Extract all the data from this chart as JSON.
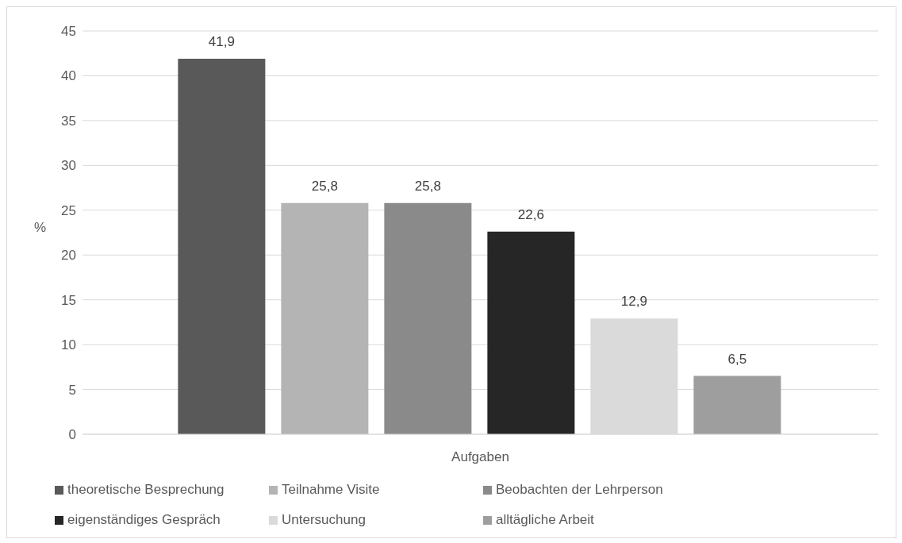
{
  "chart_data": {
    "type": "bar",
    "ylabel": "%",
    "categories": [
      "Aufgaben"
    ],
    "ylim": [
      0,
      45
    ],
    "yticks": [
      0,
      5,
      10,
      15,
      20,
      25,
      30,
      35,
      40,
      45
    ],
    "grid": "y",
    "legend": "bottom",
    "series": [
      {
        "name": "theoretische Besprechung",
        "color": "#595959",
        "values": [
          41.9
        ],
        "value_labels": [
          "41,9"
        ]
      },
      {
        "name": "Teilnahme Visite",
        "color": "#b4b4b4",
        "values": [
          25.8
        ],
        "value_labels": [
          "25,8"
        ]
      },
      {
        "name": "Beobachten der Lehrperson",
        "color": "#8a8a8a",
        "values": [
          25.8
        ],
        "value_labels": [
          "25,8"
        ]
      },
      {
        "name": "eigenständiges Gespräch",
        "color": "#262626",
        "values": [
          22.6
        ],
        "value_labels": [
          "22,6"
        ]
      },
      {
        "name": "Untersuchung",
        "color": "#dadada",
        "values": [
          12.9
        ],
        "value_labels": [
          "12,9"
        ]
      },
      {
        "name": "alltägliche Arbeit",
        "color": "#9e9e9e",
        "values": [
          6.5
        ],
        "value_labels": [
          "6,5"
        ]
      }
    ]
  }
}
